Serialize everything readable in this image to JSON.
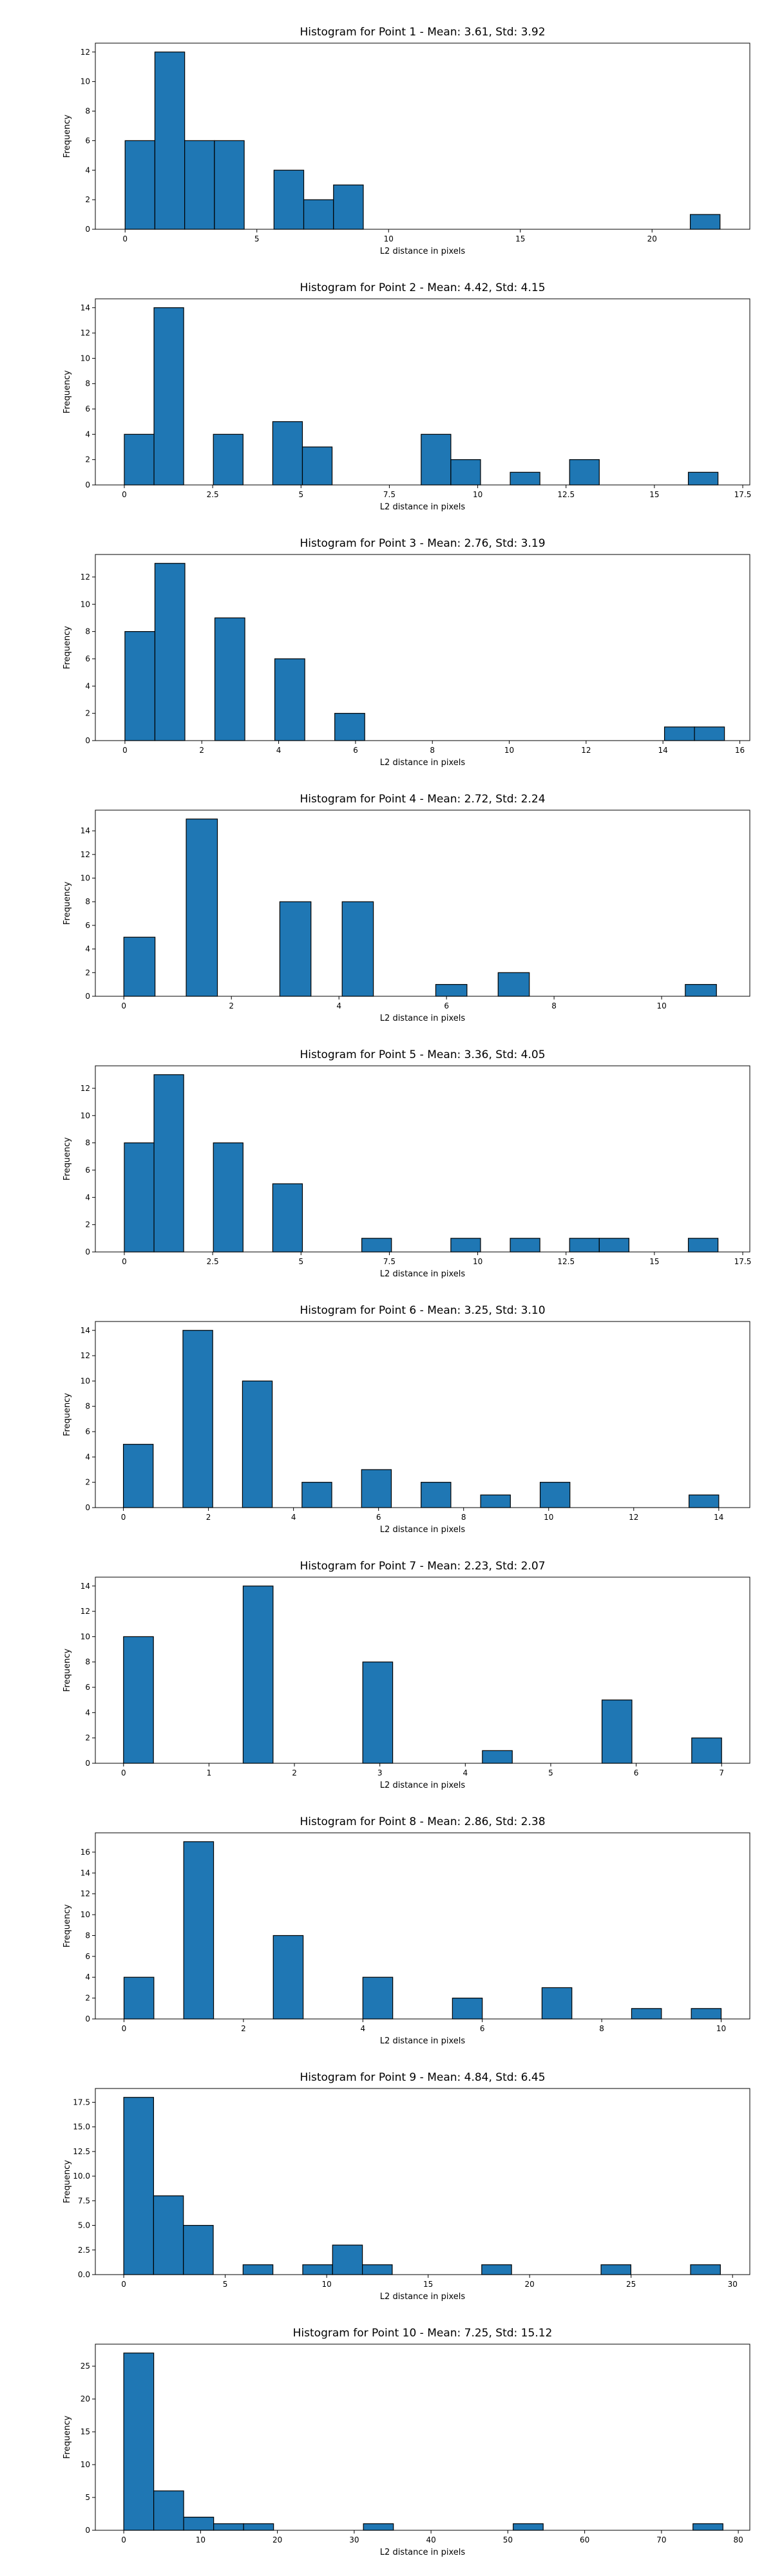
{
  "chart_data": [
    {
      "type": "bar",
      "title": "Histogram for Point 1 - Mean: 3.61, Std: 3.92",
      "xlabel": "L2 distance in pixels",
      "ylabel": "Frequency",
      "xlim": [
        -1.13,
        23.71
      ],
      "ylim": [
        0,
        12.6
      ],
      "xticks": [
        0,
        5,
        10,
        15,
        20
      ],
      "yticks": [
        0,
        2,
        4,
        6,
        8,
        10,
        12
      ],
      "bins": [
        [
          0,
          1.13,
          6
        ],
        [
          1.13,
          2.26,
          12
        ],
        [
          2.26,
          3.39,
          6
        ],
        [
          3.39,
          4.52,
          6
        ],
        [
          5.65,
          6.78,
          4
        ],
        [
          6.78,
          7.91,
          2
        ],
        [
          7.91,
          9.04,
          3
        ],
        [
          21.45,
          22.58,
          1
        ]
      ]
    },
    {
      "type": "bar",
      "title": "Histogram for Point 2 - Mean: 4.42, Std: 4.15",
      "xlabel": "L2 distance in pixels",
      "ylabel": "Frequency",
      "xlim": [
        -0.82,
        17.7
      ],
      "ylim": [
        0,
        14.7
      ],
      "xticks": [
        0.0,
        2.5,
        5.0,
        7.5,
        10.0,
        12.5,
        15.0,
        17.5
      ],
      "yticks": [
        0,
        2,
        4,
        6,
        8,
        10,
        12,
        14
      ],
      "bins": [
        [
          0,
          0.84,
          4
        ],
        [
          0.84,
          1.68,
          14
        ],
        [
          2.52,
          3.36,
          4
        ],
        [
          4.2,
          5.04,
          5
        ],
        [
          5.04,
          5.88,
          3
        ],
        [
          8.4,
          9.24,
          4
        ],
        [
          9.24,
          10.08,
          2
        ],
        [
          10.92,
          11.76,
          1
        ],
        [
          12.6,
          13.44,
          2
        ],
        [
          15.96,
          16.8,
          1
        ]
      ]
    },
    {
      "type": "bar",
      "title": "Histogram for Point 3 - Mean: 2.76, Std: 3.19",
      "xlabel": "L2 distance in pixels",
      "ylabel": "Frequency",
      "xlim": [
        -0.77,
        16.26
      ],
      "ylim": [
        0,
        13.65
      ],
      "xticks": [
        0,
        2,
        4,
        6,
        8,
        10,
        12,
        14,
        16
      ],
      "yticks": [
        0,
        2,
        4,
        6,
        8,
        10,
        12
      ],
      "bins": [
        [
          0,
          0.78,
          8
        ],
        [
          0.78,
          1.56,
          13
        ],
        [
          2.34,
          3.12,
          9
        ],
        [
          3.9,
          4.68,
          6
        ],
        [
          5.46,
          6.24,
          2
        ],
        [
          14.04,
          14.82,
          1
        ],
        [
          14.82,
          15.6,
          1
        ]
      ]
    },
    {
      "type": "bar",
      "title": "Histogram for Point 4 - Mean: 2.72, Std: 2.24",
      "xlabel": "L2 distance in pixels",
      "ylabel": "Frequency",
      "xlim": [
        -0.53,
        11.64
      ],
      "ylim": [
        0,
        15.75
      ],
      "xticks": [
        0,
        2,
        4,
        6,
        8,
        10
      ],
      "yticks": [
        0,
        2,
        4,
        6,
        8,
        10,
        12,
        14
      ],
      "bins": [
        [
          0,
          0.58,
          5
        ],
        [
          1.16,
          1.74,
          15
        ],
        [
          2.9,
          3.48,
          8
        ],
        [
          4.06,
          4.64,
          8
        ],
        [
          5.8,
          6.38,
          1
        ],
        [
          6.96,
          7.54,
          2
        ],
        [
          10.44,
          11.02,
          1
        ]
      ]
    },
    {
      "type": "bar",
      "title": "Histogram for Point 5 - Mean: 3.36, Std: 4.05",
      "xlabel": "L2 distance in pixels",
      "ylabel": "Frequency",
      "xlim": [
        -0.82,
        17.7
      ],
      "ylim": [
        0,
        13.65
      ],
      "xticks": [
        0.0,
        2.5,
        5.0,
        7.5,
        10.0,
        12.5,
        15.0,
        17.5
      ],
      "yticks": [
        0,
        2,
        4,
        6,
        8,
        10,
        12
      ],
      "bins": [
        [
          0,
          0.84,
          8
        ],
        [
          0.84,
          1.68,
          13
        ],
        [
          2.52,
          3.36,
          8
        ],
        [
          4.2,
          5.04,
          5
        ],
        [
          6.72,
          7.56,
          1
        ],
        [
          9.24,
          10.08,
          1
        ],
        [
          10.92,
          11.76,
          1
        ],
        [
          12.6,
          13.44,
          1
        ],
        [
          13.44,
          14.28,
          1
        ],
        [
          15.96,
          16.8,
          1
        ]
      ]
    },
    {
      "type": "bar",
      "title": "Histogram for Point 6 - Mean: 3.25, Std: 3.10",
      "xlabel": "L2 distance in pixels",
      "ylabel": "Frequency",
      "xlim": [
        -0.66,
        14.73
      ],
      "ylim": [
        0,
        14.7
      ],
      "xticks": [
        0,
        2,
        4,
        6,
        8,
        10,
        12,
        14
      ],
      "yticks": [
        0,
        2,
        4,
        6,
        8,
        10,
        12,
        14
      ],
      "bins": [
        [
          0,
          0.7,
          5
        ],
        [
          1.4,
          2.1,
          14
        ],
        [
          2.8,
          3.5,
          10
        ],
        [
          4.2,
          4.9,
          2
        ],
        [
          5.6,
          6.3,
          3
        ],
        [
          7.0,
          7.7,
          2
        ],
        [
          8.4,
          9.1,
          1
        ],
        [
          9.8,
          10.5,
          2
        ],
        [
          13.3,
          14.0,
          1
        ]
      ]
    },
    {
      "type": "bar",
      "title": "Histogram for Point 7 - Mean: 2.23, Std: 2.07",
      "xlabel": "L2 distance in pixels",
      "ylabel": "Frequency",
      "xlim": [
        -0.33,
        7.33
      ],
      "ylim": [
        0,
        14.7
      ],
      "xticks": [
        0,
        1,
        2,
        3,
        4,
        5,
        6,
        7
      ],
      "yticks": [
        0,
        2,
        4,
        6,
        8,
        10,
        12,
        14
      ],
      "bins": [
        [
          0,
          0.35,
          10
        ],
        [
          1.4,
          1.75,
          14
        ],
        [
          2.8,
          3.15,
          8
        ],
        [
          4.2,
          4.55,
          1
        ],
        [
          5.6,
          5.95,
          5
        ],
        [
          6.65,
          7.0,
          2
        ]
      ]
    },
    {
      "type": "bar",
      "title": "Histogram for Point 8 - Mean: 2.86, Std: 2.38",
      "xlabel": "L2 distance in pixels",
      "ylabel": "Frequency",
      "xlim": [
        -0.48,
        10.48
      ],
      "ylim": [
        0,
        17.85
      ],
      "xticks": [
        0,
        2,
        4,
        6,
        8,
        10
      ],
      "yticks": [
        0,
        2,
        4,
        6,
        8,
        10,
        12,
        14,
        16
      ],
      "bins": [
        [
          0,
          0.5,
          4
        ],
        [
          1.0,
          1.5,
          17
        ],
        [
          2.5,
          3.0,
          8
        ],
        [
          4.0,
          4.5,
          4
        ],
        [
          5.5,
          6.0,
          2
        ],
        [
          7.0,
          7.5,
          3
        ],
        [
          8.5,
          9.0,
          1
        ],
        [
          9.5,
          10.0,
          1
        ]
      ]
    },
    {
      "type": "bar",
      "title": "Histogram for Point 9 - Mean: 4.84, Std: 6.45",
      "xlabel": "L2 distance in pixels",
      "ylabel": "Frequency",
      "xlim": [
        -1.4,
        30.85
      ],
      "ylim": [
        0,
        18.9
      ],
      "xticks": [
        0,
        5,
        10,
        15,
        20,
        25,
        30
      ],
      "yticks": [
        0.0,
        2.5,
        5.0,
        7.5,
        10.0,
        12.5,
        15.0,
        17.5
      ],
      "ytick_decimals": 1,
      "bins": [
        [
          0,
          1.47,
          18
        ],
        [
          1.47,
          2.94,
          8
        ],
        [
          2.94,
          4.41,
          5
        ],
        [
          5.88,
          7.35,
          1
        ],
        [
          8.82,
          10.29,
          1
        ],
        [
          10.29,
          11.76,
          3
        ],
        [
          11.76,
          13.23,
          1
        ],
        [
          17.64,
          19.11,
          1
        ],
        [
          23.52,
          24.99,
          1
        ],
        [
          27.93,
          29.4,
          1
        ]
      ]
    },
    {
      "type": "bar",
      "title": "Histogram for Point 10 - Mean: 7.25, Std: 15.12",
      "xlabel": "L2 distance in pixels",
      "ylabel": "Frequency",
      "xlim": [
        -3.7,
        81.5
      ],
      "ylim": [
        0,
        28.35
      ],
      "xticks": [
        0,
        10,
        20,
        30,
        40,
        50,
        60,
        70,
        80
      ],
      "yticks": [
        0,
        5,
        10,
        15,
        20,
        25
      ],
      "bins": [
        [
          0,
          3.9,
          27
        ],
        [
          3.9,
          7.8,
          6
        ],
        [
          7.8,
          11.7,
          2
        ],
        [
          11.7,
          15.6,
          1
        ],
        [
          15.6,
          19.5,
          1
        ],
        [
          31.2,
          35.1,
          1
        ],
        [
          50.7,
          54.6,
          1
        ],
        [
          74.1,
          78.0,
          1
        ]
      ]
    }
  ]
}
